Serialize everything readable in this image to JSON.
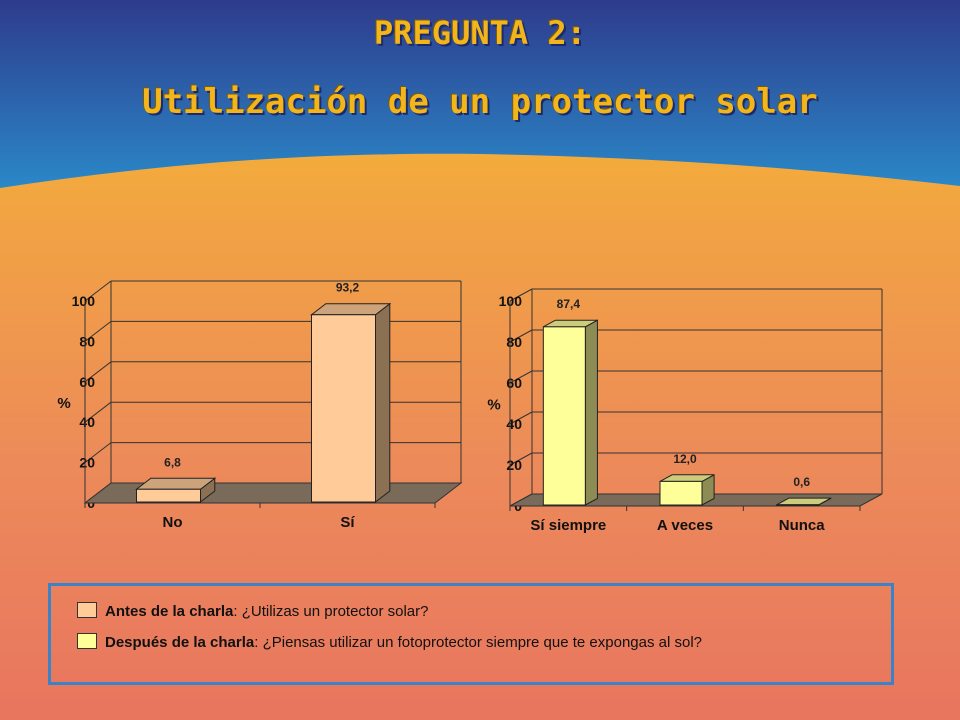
{
  "title": "PREGUNTA 2:",
  "subtitle": "Utilización de un protector solar",
  "colors": {
    "before": "#ffcc99",
    "after": "#ffff99",
    "sky_top": "#2e3b8c",
    "sky_bottom": "#2a88c8",
    "floor": "#7a6a5a",
    "legend_border": "#3a83c8"
  },
  "chart_data": [
    {
      "type": "bar",
      "title": "",
      "xlabel": "",
      "ylabel": "%",
      "ylim": [
        0,
        100
      ],
      "yticks": [
        "0",
        "20",
        "40",
        "60",
        "80",
        "100"
      ],
      "categories": [
        "No",
        "Sí"
      ],
      "values": [
        6.8,
        93.2
      ],
      "value_labels": [
        "6,8",
        "93,2"
      ],
      "grid": true,
      "style": "3d"
    },
    {
      "type": "bar",
      "title": "",
      "xlabel": "",
      "ylabel": "%",
      "ylim": [
        0,
        100
      ],
      "yticks": [
        "0",
        "20",
        "40",
        "60",
        "80",
        "100"
      ],
      "categories": [
        "Sí siempre",
        "A veces",
        "Nunca"
      ],
      "values": [
        87.4,
        12.0,
        0.6
      ],
      "value_labels": [
        "87,4",
        "12,0",
        "0,6"
      ],
      "grid": true,
      "style": "3d"
    }
  ],
  "legend": [
    {
      "bold": "Antes de la charla",
      "text": ": ¿Utilizas un protector solar?"
    },
    {
      "bold": "Después de la charla",
      "text": ": ¿Piensas utilizar un fotoprotector siempre que te expongas al sol?"
    }
  ]
}
